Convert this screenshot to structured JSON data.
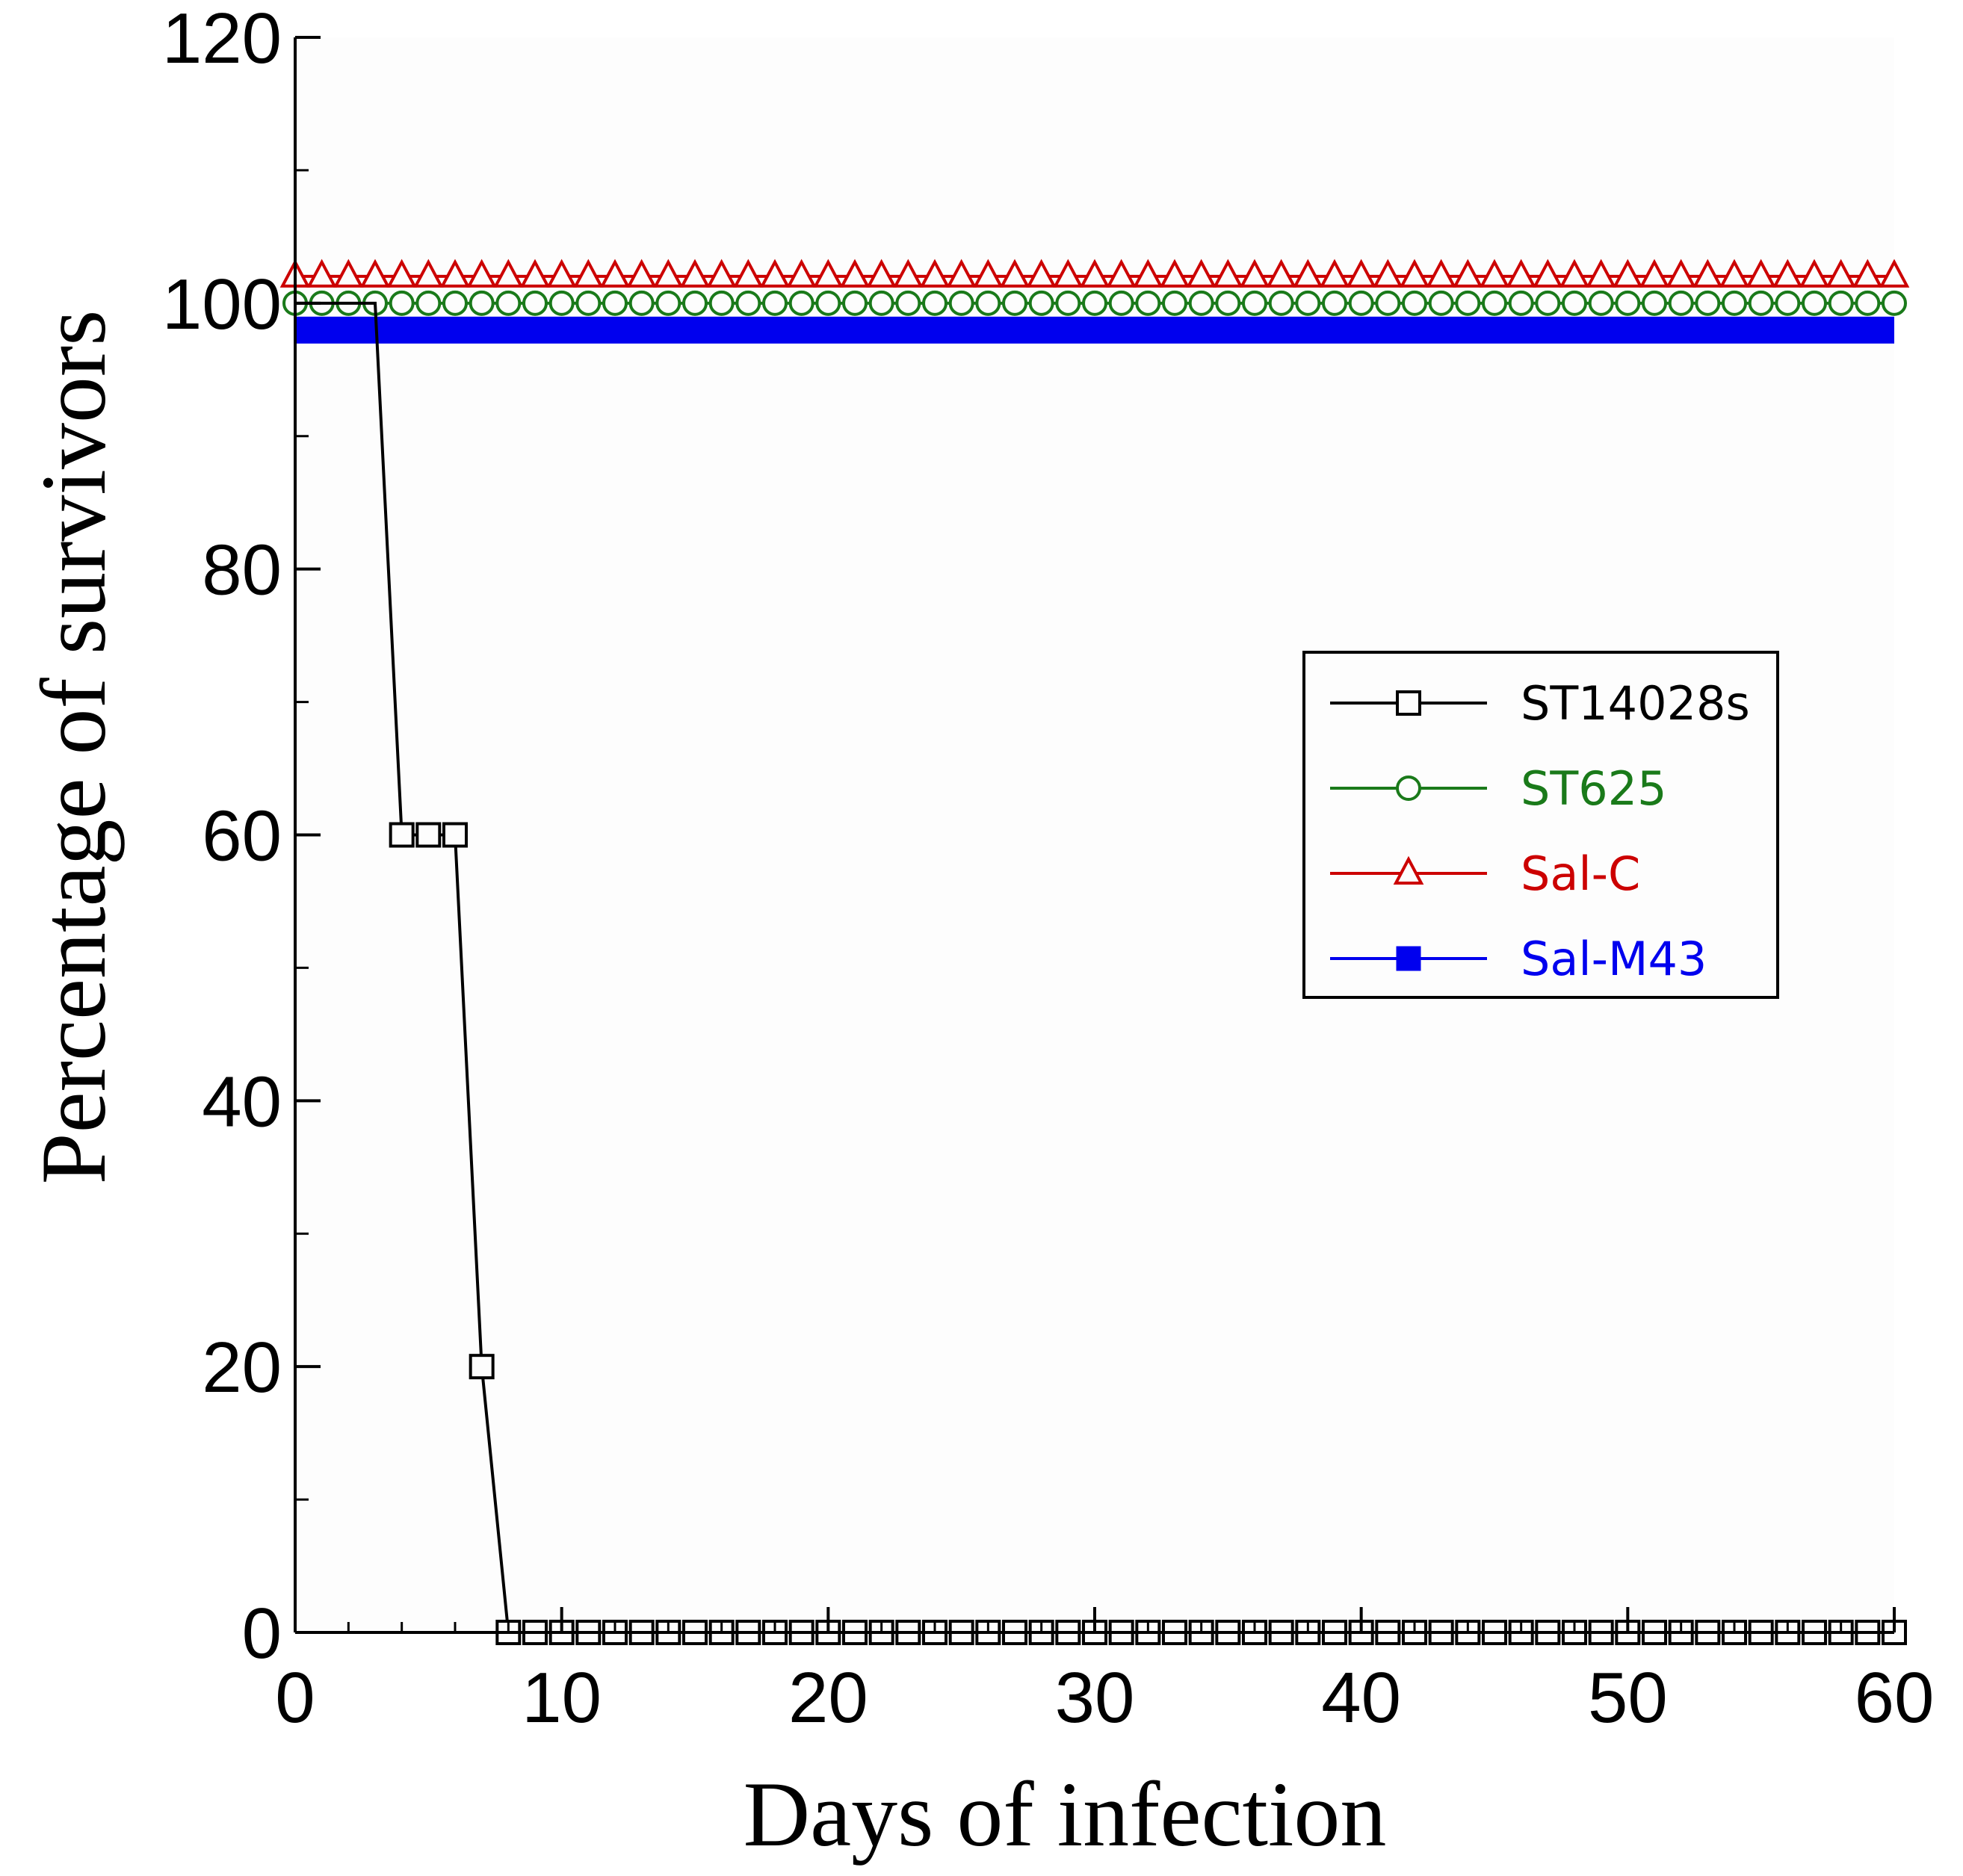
{
  "chart_data": {
    "type": "line",
    "title": "",
    "xlabel": "Days of infection",
    "ylabel": "Percentage of survivors",
    "xlim": [
      0,
      60
    ],
    "ylim": [
      0,
      120
    ],
    "xticks": [
      0,
      10,
      20,
      30,
      40,
      50,
      60
    ],
    "yticks": [
      0,
      20,
      40,
      60,
      80,
      100,
      120
    ],
    "xtick_labels": [
      "0",
      "10",
      "20",
      "30",
      "40",
      "50",
      "60"
    ],
    "ytick_labels": [
      "0",
      "20",
      "40",
      "60",
      "80",
      "100",
      "120"
    ],
    "grid": false,
    "legend_position": "right",
    "series": [
      {
        "name": "ST14028s",
        "color": "#000000",
        "marker": "square-open",
        "points": [
          [
            0,
            100
          ],
          [
            1,
            100
          ],
          [
            2,
            100
          ],
          [
            3,
            100
          ],
          [
            4,
            60
          ],
          [
            5,
            60
          ],
          [
            6,
            60
          ],
          [
            7,
            20
          ],
          [
            8,
            0
          ],
          [
            60,
            0
          ]
        ],
        "marker_step_after_last_drop": 1
      },
      {
        "name": "ST625",
        "color": "#1a7a1a",
        "marker": "circle-open",
        "points": [
          [
            0,
            100
          ],
          [
            60,
            100
          ]
        ]
      },
      {
        "name": "Sal-C",
        "color": "#cc0000",
        "marker": "triangle-open",
        "points": [
          [
            0,
            100
          ],
          [
            60,
            100
          ]
        ]
      },
      {
        "name": "Sal-M43",
        "color": "#0000ee",
        "marker": "square-filled",
        "points": [
          [
            0,
            100
          ],
          [
            60,
            100
          ]
        ]
      }
    ]
  }
}
